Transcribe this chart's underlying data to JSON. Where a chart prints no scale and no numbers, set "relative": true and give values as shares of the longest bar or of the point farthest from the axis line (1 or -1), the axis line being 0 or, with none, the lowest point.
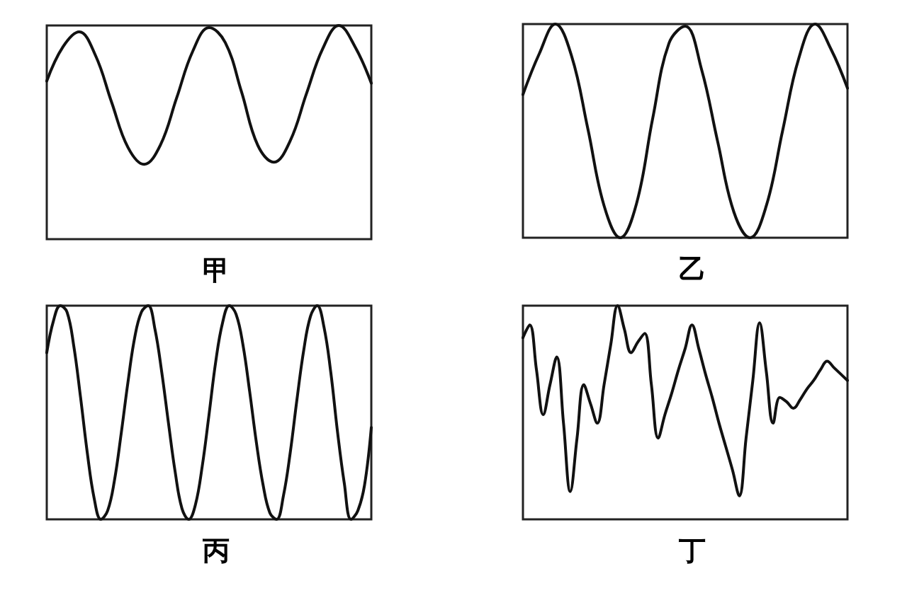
{
  "chart_data": [
    {
      "type": "line",
      "title": "甲",
      "relative": true,
      "marker": "none",
      "line_style": "solid",
      "color": "#111111",
      "categories": [
        null,
        null,
        null,
        null,
        null,
        null,
        null,
        null,
        null,
        null,
        null,
        null,
        null,
        null,
        null,
        null,
        null,
        null,
        null,
        null,
        null
      ],
      "values": [
        0.74,
        0.9,
        0.97,
        0.86,
        0.64,
        0.43,
        0.35,
        0.44,
        0.66,
        0.88,
        0.99,
        0.92,
        0.69,
        0.44,
        0.36,
        0.46,
        0.68,
        0.89,
        1.0,
        0.9,
        0.73
      ]
    },
    {
      "type": "line",
      "title": "乙",
      "relative": true,
      "marker": "none",
      "line_style": "solid",
      "color": "#111111",
      "categories": [
        null,
        null,
        null,
        null,
        null,
        null,
        null,
        null,
        null,
        null,
        null,
        null,
        null,
        null,
        null,
        null,
        null,
        null,
        null,
        null,
        null
      ],
      "values": [
        0.67,
        0.86,
        1.0,
        0.85,
        0.51,
        0.15,
        0.0,
        0.16,
        0.56,
        0.91,
        0.99,
        0.79,
        0.45,
        0.12,
        0.0,
        0.15,
        0.5,
        0.84,
        1.0,
        0.88,
        0.7
      ]
    },
    {
      "type": "line",
      "title": "丙",
      "relative": true,
      "marker": "none",
      "line_style": "solid",
      "color": "#111111",
      "categories": [
        null,
        null,
        null,
        null,
        null,
        null,
        null,
        null,
        null,
        null,
        null,
        null,
        null,
        null,
        null,
        null,
        null,
        null,
        null,
        null,
        null,
        null,
        null,
        null,
        null,
        null,
        null,
        null,
        null,
        null,
        null,
        null,
        null,
        null,
        null,
        null,
        null,
        null,
        null,
        null,
        null,
        null,
        null,
        null,
        null,
        null,
        null,
        null,
        null
      ],
      "values": [
        0.78,
        0.93,
        1.0,
        0.97,
        0.81,
        0.57,
        0.31,
        0.1,
        0.0,
        0.04,
        0.18,
        0.4,
        0.64,
        0.85,
        0.97,
        1.0,
        0.89,
        0.69,
        0.45,
        0.22,
        0.05,
        0.0,
        0.07,
        0.25,
        0.49,
        0.74,
        0.92,
        1.0,
        0.96,
        0.82,
        0.6,
        0.36,
        0.16,
        0.03,
        0.0,
        0.11,
        0.31,
        0.56,
        0.79,
        0.95,
        1.0,
        0.9,
        0.69,
        0.41,
        0.17,
        0.0,
        0.04,
        0.16,
        0.43
      ]
    },
    {
      "type": "line",
      "title": "丁",
      "relative": true,
      "marker": "none",
      "line_style": "solid",
      "color": "#111111",
      "categories": [
        null,
        null,
        null,
        null,
        null,
        null,
        null,
        null,
        null,
        null,
        null,
        null,
        null,
        null,
        null,
        null,
        null,
        null,
        null,
        null,
        null,
        null,
        null,
        null,
        null,
        null,
        null,
        null,
        null,
        null,
        null,
        null,
        null,
        null,
        null,
        null,
        null,
        null,
        null,
        null,
        null,
        null,
        null,
        null,
        null,
        null,
        null,
        null,
        null
      ],
      "values": [
        0.85,
        0.91,
        0.7,
        0.49,
        0.63,
        0.76,
        0.45,
        0.13,
        0.38,
        0.63,
        0.54,
        0.45,
        0.63,
        0.82,
        1.0,
        0.89,
        0.78,
        0.83,
        0.87,
        0.63,
        0.38,
        0.49,
        0.59,
        0.7,
        0.8,
        0.91,
        0.8,
        0.68,
        0.57,
        0.45,
        0.34,
        0.23,
        0.11,
        0.38,
        0.65,
        0.92,
        0.69,
        0.45,
        0.57,
        0.55,
        0.52,
        0.56,
        0.61,
        0.65,
        0.7,
        0.74,
        0.71,
        0.68,
        0.65
      ]
    }
  ]
}
